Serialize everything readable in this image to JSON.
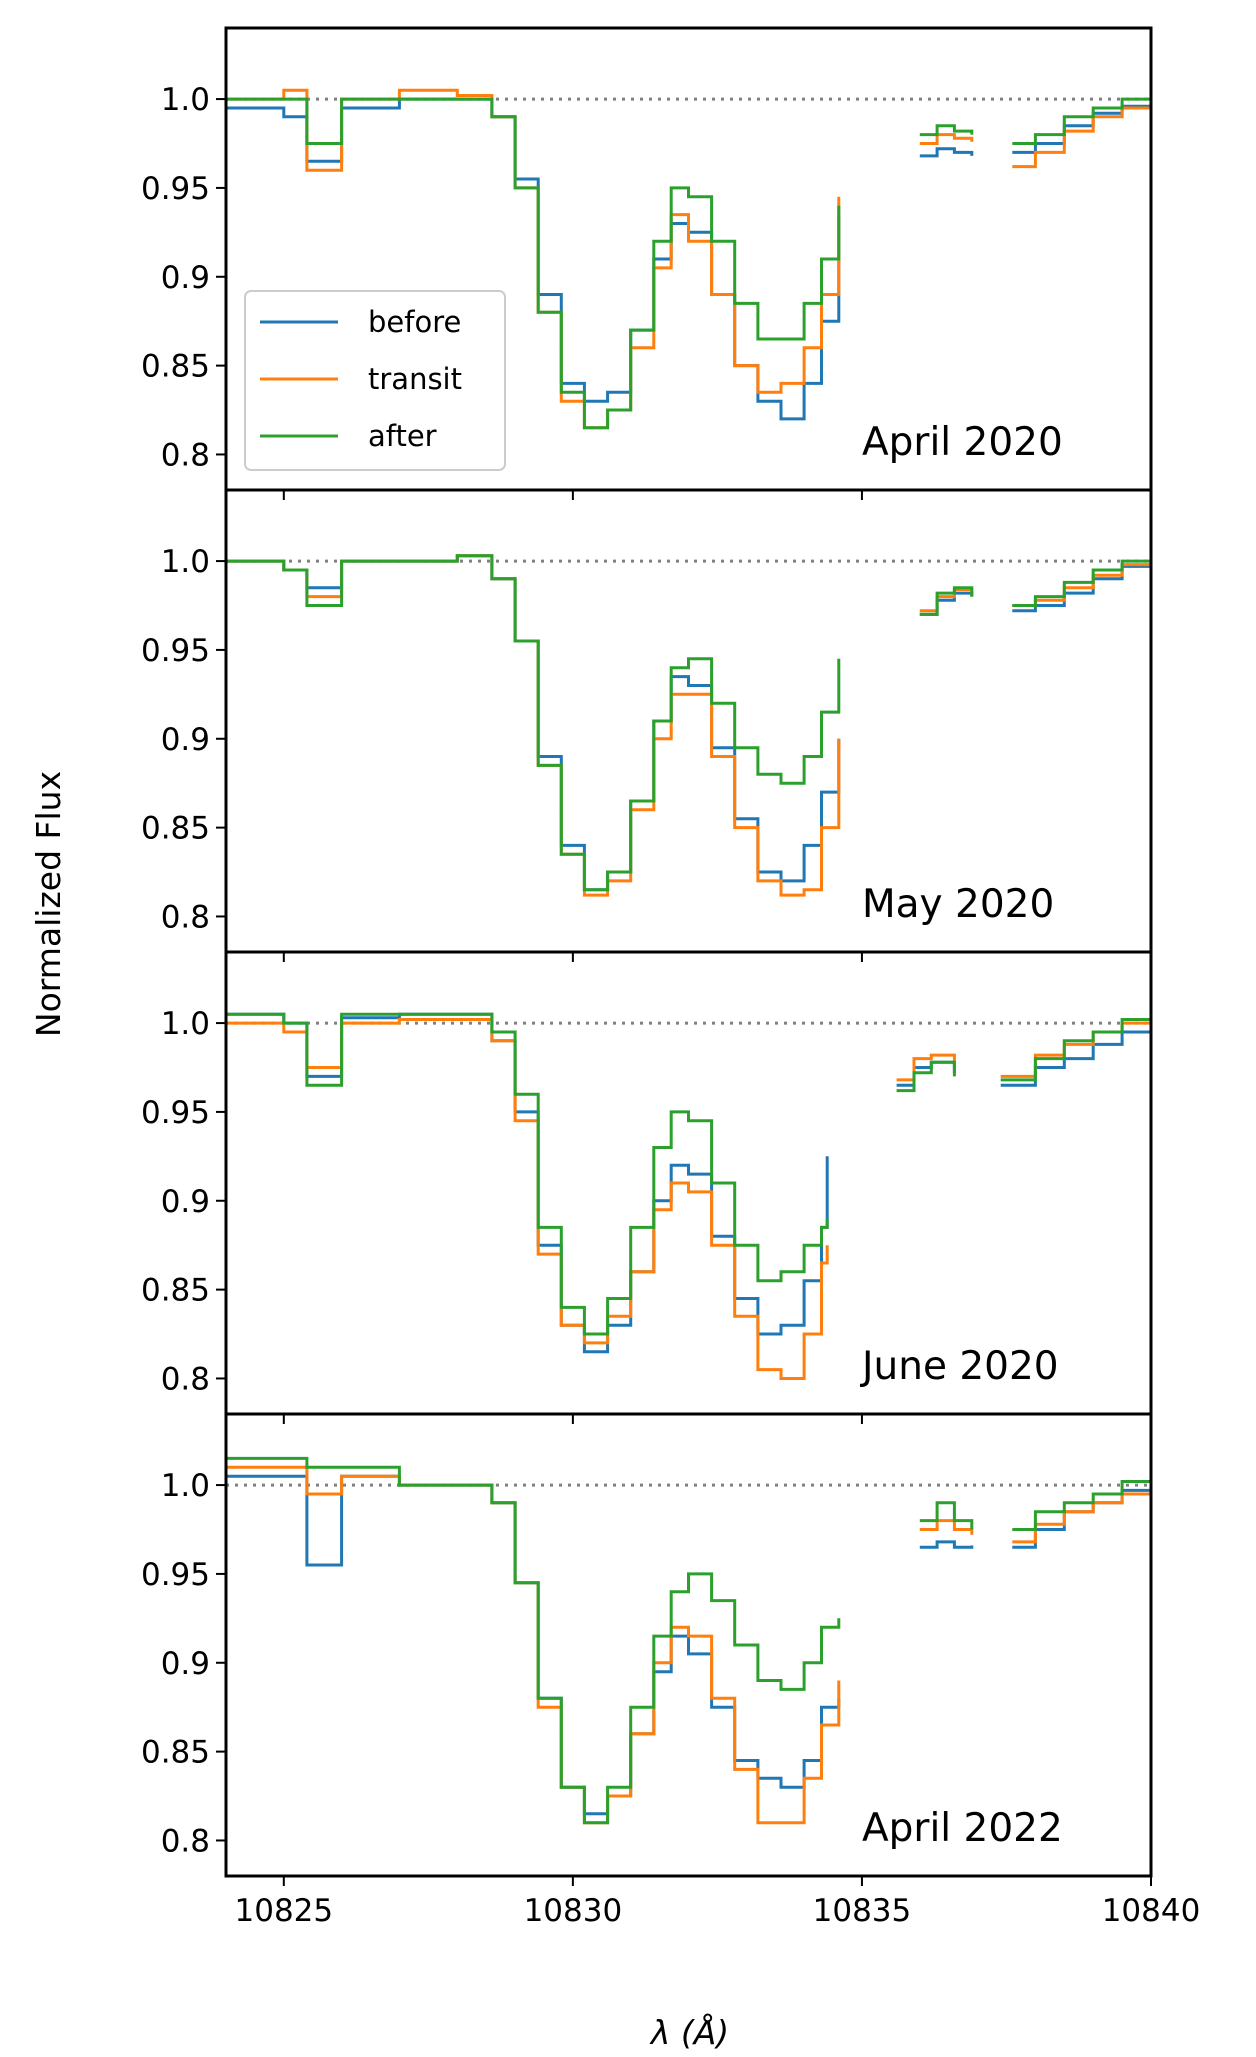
{
  "chart_data": {
    "type": "line",
    "ylabel": "Normalized Flux",
    "xlabel": "λ (Å)",
    "xlim": [
      10824.0,
      10840.0
    ],
    "ylim": [
      0.78,
      1.04
    ],
    "x_ticks": [
      10825,
      10830,
      10835,
      10840
    ],
    "x_tick_labels": [
      "10825",
      "10830",
      "10835",
      "10840"
    ],
    "y_ticks": [
      0.8,
      0.85,
      0.9,
      0.95,
      1.0
    ],
    "y_tick_labels": [
      "0.8",
      "0.85",
      "0.9",
      "0.95",
      "1.0"
    ],
    "reference_line": 1.0,
    "legend": {
      "location": "lower-left of top panel",
      "entries": [
        {
          "label": "before",
          "color": "#1f77b4"
        },
        {
          "label": "transit",
          "color": "#ff7f0e"
        },
        {
          "label": "after",
          "color": "#2ca02c"
        }
      ]
    },
    "panels": [
      {
        "label": "April 2020",
        "segments": [
          {
            "x": [
              10824.0,
              10825.0,
              10825.4,
              10826.0,
              10827.0,
              10828.0,
              10828.6,
              10829.0,
              10829.4,
              10829.8,
              10830.2,
              10830.6,
              10831.0,
              10831.4,
              10831.7,
              10832.0,
              10832.4,
              10832.8,
              10833.2,
              10833.6,
              10834.0,
              10834.3,
              10834.6
            ],
            "series": [
              {
                "name": "before",
                "y": [
                  0.995,
                  0.99,
                  0.965,
                  0.995,
                  1.0,
                  1.0,
                  0.99,
                  0.955,
                  0.89,
                  0.84,
                  0.83,
                  0.835,
                  0.87,
                  0.91,
                  0.93,
                  0.925,
                  0.89,
                  0.85,
                  0.83,
                  0.82,
                  0.84,
                  0.875,
                  0.935
                ]
              },
              {
                "name": "transit",
                "y": [
                  1.0,
                  1.005,
                  0.96,
                  1.0,
                  1.005,
                  1.002,
                  0.99,
                  0.95,
                  0.88,
                  0.83,
                  0.815,
                  0.825,
                  0.86,
                  0.905,
                  0.935,
                  0.92,
                  0.89,
                  0.85,
                  0.835,
                  0.84,
                  0.86,
                  0.89,
                  0.945
                ]
              },
              {
                "name": "after",
                "y": [
                  1.0,
                  1.0,
                  0.975,
                  1.0,
                  1.0,
                  1.0,
                  0.99,
                  0.95,
                  0.88,
                  0.835,
                  0.815,
                  0.825,
                  0.87,
                  0.92,
                  0.95,
                  0.945,
                  0.92,
                  0.885,
                  0.865,
                  0.865,
                  0.885,
                  0.91,
                  0.94
                ]
              }
            ]
          },
          {
            "x": [
              10836.0,
              10836.3,
              10836.6,
              10836.9
            ],
            "series": [
              {
                "name": "before",
                "y": [
                  0.968,
                  0.972,
                  0.97,
                  0.968
                ]
              },
              {
                "name": "transit",
                "y": [
                  0.975,
                  0.98,
                  0.978,
                  0.976
                ]
              },
              {
                "name": "after",
                "y": [
                  0.98,
                  0.985,
                  0.982,
                  0.98
                ]
              }
            ]
          },
          {
            "x": [
              10837.6,
              10838.0,
              10838.5,
              10839.0,
              10839.5,
              10840.0
            ],
            "series": [
              {
                "name": "before",
                "y": [
                  0.97,
                  0.975,
                  0.985,
                  0.992,
                  0.996,
                  1.0
                ]
              },
              {
                "name": "transit",
                "y": [
                  0.962,
                  0.97,
                  0.982,
                  0.99,
                  0.995,
                  0.998
                ]
              },
              {
                "name": "after",
                "y": [
                  0.975,
                  0.98,
                  0.99,
                  0.995,
                  1.0,
                  1.0
                ]
              }
            ]
          }
        ]
      },
      {
        "label": "May 2020",
        "segments": [
          {
            "x": [
              10824.0,
              10825.0,
              10825.4,
              10826.0,
              10827.0,
              10828.0,
              10828.6,
              10829.0,
              10829.4,
              10829.8,
              10830.2,
              10830.6,
              10831.0,
              10831.4,
              10831.7,
              10832.0,
              10832.4,
              10832.8,
              10833.2,
              10833.6,
              10834.0,
              10834.3,
              10834.6
            ],
            "series": [
              {
                "name": "before",
                "y": [
                  1.0,
                  0.995,
                  0.985,
                  1.0,
                  1.0,
                  1.003,
                  0.99,
                  0.955,
                  0.89,
                  0.84,
                  0.815,
                  0.825,
                  0.865,
                  0.91,
                  0.935,
                  0.93,
                  0.895,
                  0.855,
                  0.825,
                  0.82,
                  0.84,
                  0.87,
                  0.9
                ]
              },
              {
                "name": "transit",
                "y": [
                  1.0,
                  0.995,
                  0.98,
                  1.0,
                  1.0,
                  1.003,
                  0.99,
                  0.955,
                  0.885,
                  0.835,
                  0.812,
                  0.82,
                  0.86,
                  0.9,
                  0.925,
                  0.925,
                  0.89,
                  0.85,
                  0.82,
                  0.812,
                  0.815,
                  0.85,
                  0.9
                ]
              },
              {
                "name": "after",
                "y": [
                  1.0,
                  0.995,
                  0.975,
                  1.0,
                  1.0,
                  1.003,
                  0.99,
                  0.955,
                  0.885,
                  0.835,
                  0.815,
                  0.825,
                  0.865,
                  0.91,
                  0.94,
                  0.945,
                  0.92,
                  0.895,
                  0.88,
                  0.875,
                  0.89,
                  0.915,
                  0.945
                ]
              }
            ]
          },
          {
            "x": [
              10836.0,
              10836.3,
              10836.6,
              10836.9
            ],
            "series": [
              {
                "name": "before",
                "y": [
                  0.97,
                  0.978,
                  0.982,
                  0.98
                ]
              },
              {
                "name": "transit",
                "y": [
                  0.972,
                  0.98,
                  0.984,
                  0.982
                ]
              },
              {
                "name": "after",
                "y": [
                  0.97,
                  0.982,
                  0.985,
                  0.98
                ]
              }
            ]
          },
          {
            "x": [
              10837.6,
              10838.0,
              10838.5,
              10839.0,
              10839.5,
              10840.0
            ],
            "series": [
              {
                "name": "before",
                "y": [
                  0.972,
                  0.975,
                  0.982,
                  0.99,
                  0.997,
                  1.0
                ]
              },
              {
                "name": "transit",
                "y": [
                  0.975,
                  0.978,
                  0.985,
                  0.992,
                  0.998,
                  1.0
                ]
              },
              {
                "name": "after",
                "y": [
                  0.975,
                  0.98,
                  0.988,
                  0.995,
                  1.0,
                  1.002
                ]
              }
            ]
          }
        ]
      },
      {
        "label": "June 2020",
        "segments": [
          {
            "x": [
              10824.0,
              10825.0,
              10825.4,
              10826.0,
              10827.0,
              10828.0,
              10828.6,
              10829.0,
              10829.4,
              10829.8,
              10830.2,
              10830.6,
              10831.0,
              10831.4,
              10831.7,
              10832.0,
              10832.4,
              10832.8,
              10833.2,
              10833.6,
              10834.0,
              10834.3,
              10834.4
            ],
            "series": [
              {
                "name": "before",
                "y": [
                  1.005,
                  1.0,
                  0.97,
                  1.003,
                  1.005,
                  1.005,
                  0.99,
                  0.95,
                  0.875,
                  0.83,
                  0.815,
                  0.83,
                  0.86,
                  0.9,
                  0.92,
                  0.915,
                  0.88,
                  0.845,
                  0.825,
                  0.83,
                  0.855,
                  0.885,
                  0.925
                ]
              },
              {
                "name": "transit",
                "y": [
                  1.0,
                  0.995,
                  0.975,
                  1.0,
                  1.002,
                  1.002,
                  0.99,
                  0.945,
                  0.87,
                  0.83,
                  0.82,
                  0.835,
                  0.86,
                  0.895,
                  0.91,
                  0.905,
                  0.875,
                  0.835,
                  0.805,
                  0.8,
                  0.825,
                  0.865,
                  0.875
                ]
              },
              {
                "name": "after",
                "y": [
                  1.005,
                  1.0,
                  0.965,
                  1.005,
                  1.005,
                  1.005,
                  0.995,
                  0.96,
                  0.885,
                  0.84,
                  0.825,
                  0.845,
                  0.885,
                  0.93,
                  0.95,
                  0.945,
                  0.91,
                  0.875,
                  0.855,
                  0.86,
                  0.875,
                  0.885,
                  0.89
                ]
              }
            ]
          },
          {
            "x": [
              10835.6,
              10835.9,
              10836.2,
              10836.6
            ],
            "series": [
              {
                "name": "before",
                "y": [
                  0.965,
                  0.975,
                  0.978,
                  0.972
                ]
              },
              {
                "name": "transit",
                "y": [
                  0.968,
                  0.98,
                  0.982,
                  0.975
                ]
              },
              {
                "name": "after",
                "y": [
                  0.962,
                  0.972,
                  0.978,
                  0.97
                ]
              }
            ]
          },
          {
            "x": [
              10837.4,
              10838.0,
              10838.5,
              10839.0,
              10839.5,
              10840.0
            ],
            "series": [
              {
                "name": "before",
                "y": [
                  0.965,
                  0.975,
                  0.98,
                  0.988,
                  0.995,
                  1.0
                ]
              },
              {
                "name": "transit",
                "y": [
                  0.97,
                  0.982,
                  0.988,
                  0.995,
                  1.0,
                  1.003
                ]
              },
              {
                "name": "after",
                "y": [
                  0.968,
                  0.98,
                  0.99,
                  0.995,
                  1.002,
                  1.005
                ]
              }
            ]
          }
        ]
      },
      {
        "label": "April 2022",
        "segments": [
          {
            "x": [
              10824.0,
              10825.0,
              10825.4,
              10826.0,
              10827.0,
              10828.0,
              10828.6,
              10829.0,
              10829.4,
              10829.8,
              10830.2,
              10830.6,
              10831.0,
              10831.4,
              10831.7,
              10832.0,
              10832.4,
              10832.8,
              10833.2,
              10833.6,
              10834.0,
              10834.3,
              10834.6
            ],
            "series": [
              {
                "name": "before",
                "y": [
                  1.005,
                  1.005,
                  0.955,
                  1.005,
                  1.0,
                  1.0,
                  0.99,
                  0.945,
                  0.88,
                  0.83,
                  0.815,
                  0.825,
                  0.86,
                  0.895,
                  0.915,
                  0.905,
                  0.875,
                  0.845,
                  0.835,
                  0.83,
                  0.845,
                  0.875,
                  0.88
                ]
              },
              {
                "name": "transit",
                "y": [
                  1.01,
                  1.01,
                  0.995,
                  1.005,
                  1.0,
                  1.0,
                  0.99,
                  0.945,
                  0.875,
                  0.83,
                  0.81,
                  0.825,
                  0.86,
                  0.9,
                  0.92,
                  0.915,
                  0.88,
                  0.84,
                  0.81,
                  0.81,
                  0.835,
                  0.865,
                  0.89
                ]
              },
              {
                "name": "after",
                "y": [
                  1.015,
                  1.015,
                  1.01,
                  1.01,
                  1.0,
                  1.0,
                  0.99,
                  0.945,
                  0.88,
                  0.83,
                  0.81,
                  0.83,
                  0.875,
                  0.915,
                  0.94,
                  0.95,
                  0.935,
                  0.91,
                  0.89,
                  0.885,
                  0.9,
                  0.92,
                  0.925
                ]
              }
            ]
          },
          {
            "x": [
              10836.0,
              10836.3,
              10836.6,
              10836.9
            ],
            "series": [
              {
                "name": "before",
                "y": [
                  0.965,
                  0.968,
                  0.965,
                  0.966
                ]
              },
              {
                "name": "transit",
                "y": [
                  0.975,
                  0.98,
                  0.975,
                  0.972
                ]
              },
              {
                "name": "after",
                "y": [
                  0.98,
                  0.99,
                  0.98,
                  0.975
                ]
              }
            ]
          },
          {
            "x": [
              10837.6,
              10838.0,
              10838.5,
              10839.0,
              10839.5,
              10840.0
            ],
            "series": [
              {
                "name": "before",
                "y": [
                  0.965,
                  0.975,
                  0.985,
                  0.99,
                  0.997,
                  1.0
                ]
              },
              {
                "name": "transit",
                "y": [
                  0.968,
                  0.978,
                  0.985,
                  0.99,
                  0.995,
                  1.0
                ]
              },
              {
                "name": "after",
                "y": [
                  0.975,
                  0.985,
                  0.99,
                  0.995,
                  1.002,
                  1.003
                ]
              }
            ]
          }
        ]
      }
    ]
  }
}
